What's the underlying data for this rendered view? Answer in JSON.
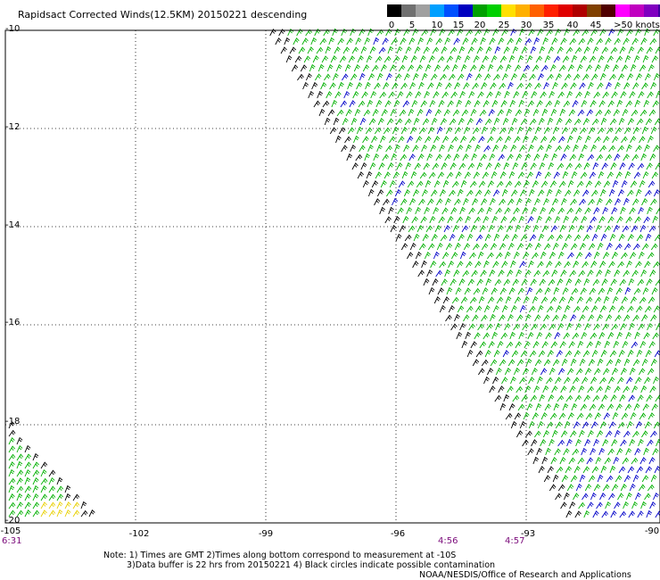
{
  "title": "Rapidsact Corrected Winds(12.5KM) 20150221 descending",
  "legend": {
    "labels": [
      "0",
      "5",
      "10",
      "15",
      "20",
      "25",
      "30",
      "35",
      "40",
      "45"
    ],
    "units_label": ">50 knots",
    "colors": [
      "#000000",
      "#707070",
      "#a0a0a0",
      "#00a0ff",
      "#0050ff",
      "#0000c0",
      "#00a000",
      "#00d000",
      "#ffe000",
      "#ffb000",
      "#ff6000",
      "#ff2000",
      "#e00000",
      "#b00000",
      "#804000",
      "#500000",
      "#ff00ff",
      "#c000c0",
      "#8000c0",
      "#4000a0"
    ]
  },
  "axes": {
    "lat_labels": [
      "-10",
      "-12",
      "-14",
      "-16",
      "-18",
      "-20"
    ],
    "lon_labels": [
      "-105",
      "-102",
      "-99",
      "-96",
      "-93",
      "-90"
    ]
  },
  "times": [
    "6:31",
    "4:56",
    "4:57"
  ],
  "notes": {
    "line1": "Note: 1) Times are GMT 2)Times along bottom correspond to measurement at -10S",
    "line2": "3)Data buffer is 22 hrs from 20150221 4) Black circles indicate possible contamination",
    "line3": "NOAA/NESDIS/Office of Research and Applications"
  },
  "wind_colors": {
    "calm": "#000000",
    "moderate": "#00b000",
    "strong": "#0000c8",
    "light": "#e8d000"
  }
}
